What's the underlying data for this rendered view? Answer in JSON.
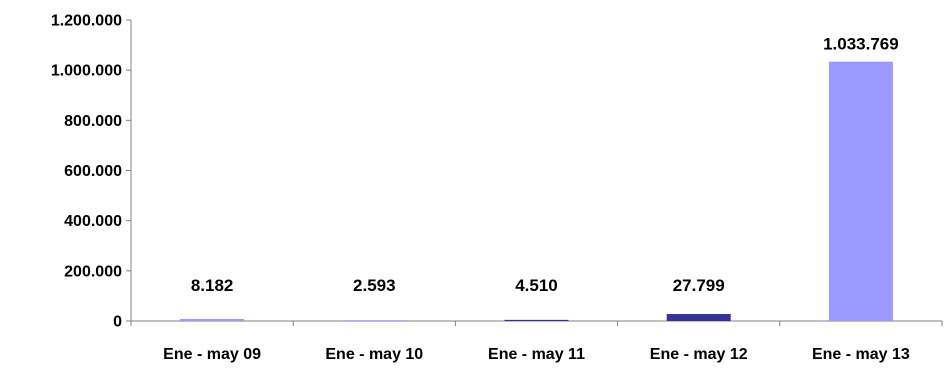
{
  "chart_data": {
    "type": "bar",
    "categories": [
      "Ene - may 09",
      "Ene - may 10",
      "Ene - may 11",
      "Ene - may 12",
      "Ene - may 13"
    ],
    "values": [
      8182,
      2593,
      4510,
      27799,
      1033769
    ],
    "data_labels": [
      "8.182",
      "2.593",
      "4.510",
      "27.799",
      "1.033.769"
    ],
    "bar_colors": [
      "#9999ff",
      "#9999ff",
      "#333399",
      "#333399",
      "#9999ff"
    ],
    "ylim": [
      0,
      1200000
    ],
    "yticks": [
      0,
      200000,
      400000,
      600000,
      800000,
      1000000,
      1200000
    ],
    "ytick_labels": [
      "0",
      "200.000",
      "400.000",
      "600.000",
      "800.000",
      "1.000.000",
      "1.200.000"
    ],
    "grid": false,
    "legend": "none",
    "title": "",
    "xlabel": "",
    "ylabel": "",
    "axis_color": "#808080"
  }
}
